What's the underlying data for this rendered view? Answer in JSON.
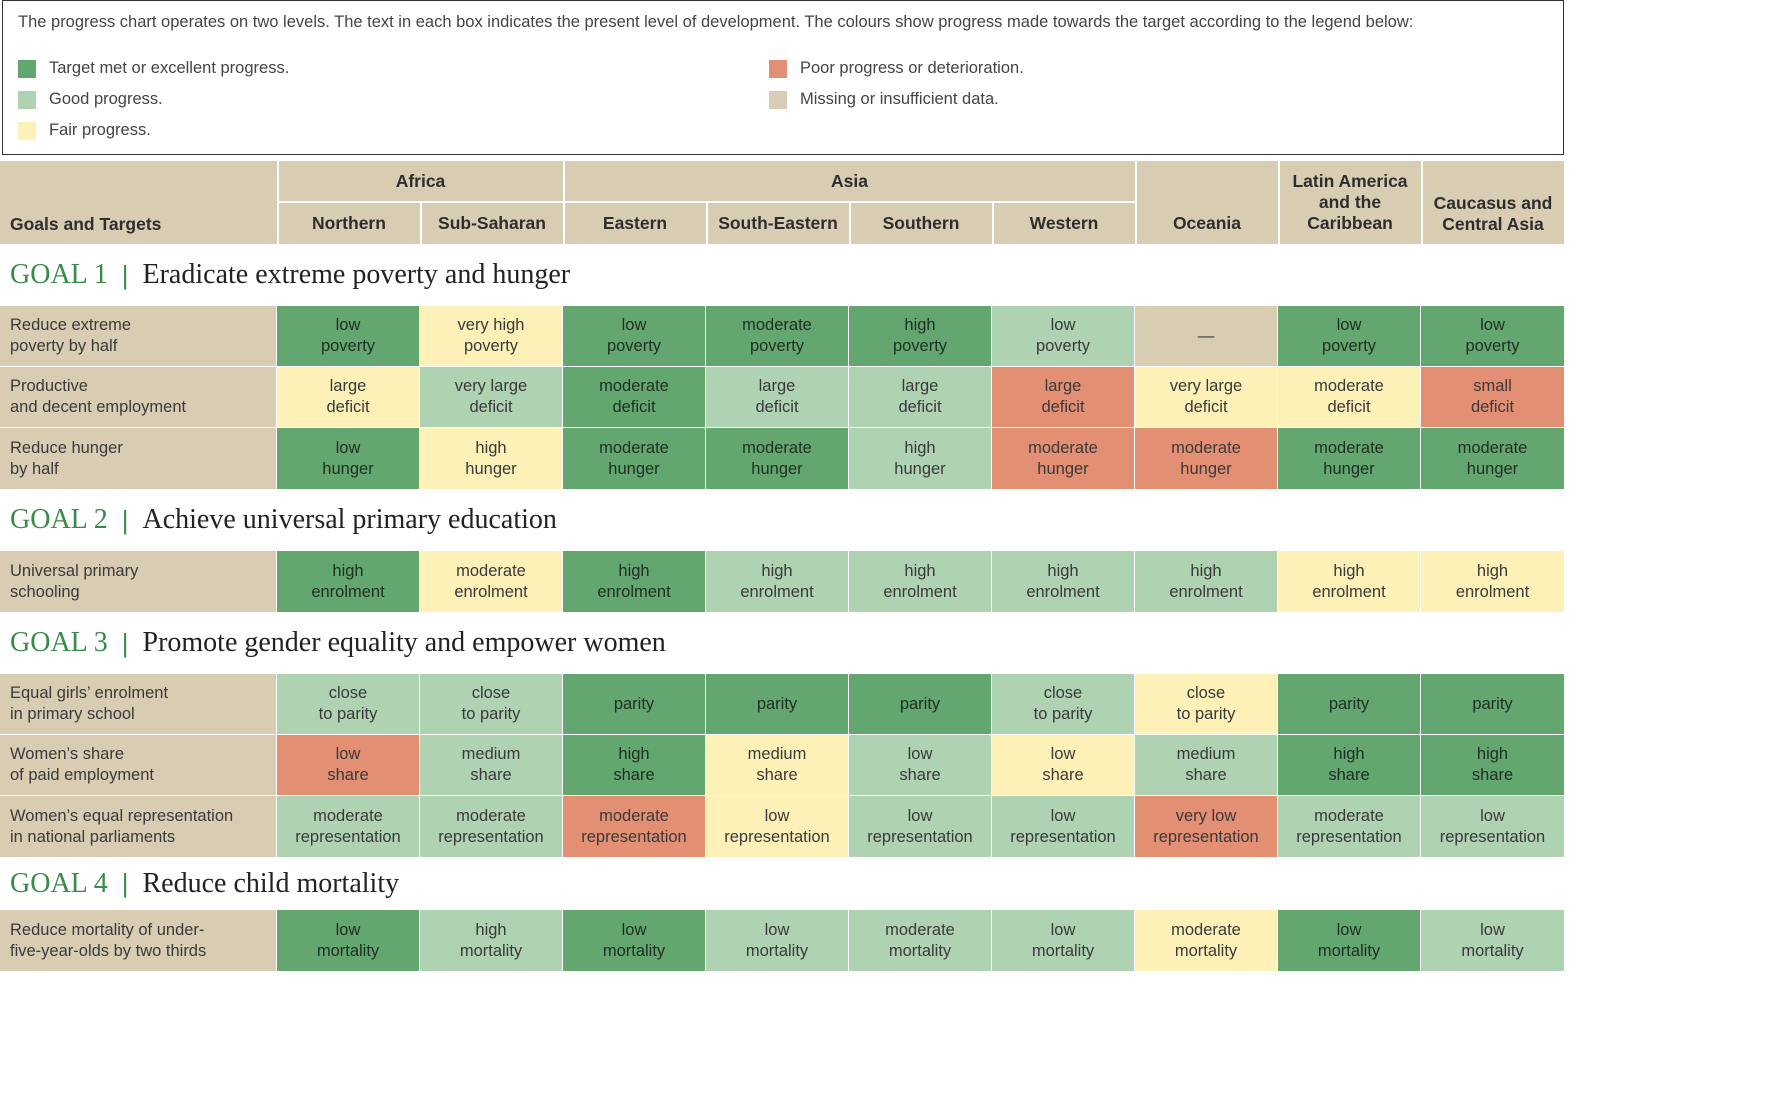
{
  "legend": {
    "intro": "The progress chart operates on two levels. The text in each box indicates the present level of development. The colours show progress made towards the target according to the legend below:",
    "items": [
      {
        "key": "excellent",
        "label": "Target met or excellent progress.",
        "color": "#63a66f"
      },
      {
        "key": "good",
        "label": "Good progress.",
        "color": "#aed2b2"
      },
      {
        "key": "fair",
        "label": "Fair progress.",
        "color": "#fdf1b8"
      },
      {
        "key": "poor",
        "label": "Poor progress or deterioration.",
        "color": "#e38f74"
      },
      {
        "key": "missing",
        "label": "Missing or insufficient data.",
        "color": "#d8cdb3"
      }
    ]
  },
  "header": {
    "goals_targets": "Goals and Targets",
    "groups": [
      "Africa",
      "Asia"
    ],
    "columns": [
      "Northern",
      "Sub-Saharan",
      "Eastern",
      "South-Eastern",
      "Southern",
      "Western",
      "Oceania",
      "Latin America\nand the\nCaribbean",
      "Caucasus and\nCentral Asia"
    ]
  },
  "goals": [
    {
      "number": "GOAL 1",
      "separator": "|",
      "title": "Eradicate extreme poverty and hunger",
      "rows": [
        {
          "label": "Reduce extreme\npoverty by half",
          "cells": [
            [
              "low\npoverty",
              "excellent"
            ],
            [
              "very high\npoverty",
              "fair"
            ],
            [
              "low\npoverty",
              "excellent"
            ],
            [
              "moderate\npoverty",
              "excellent"
            ],
            [
              "high\npoverty",
              "excellent"
            ],
            [
              "low\npoverty",
              "good"
            ],
            [
              "—",
              "missing"
            ],
            [
              "low\npoverty",
              "excellent"
            ],
            [
              "low\npoverty",
              "excellent"
            ]
          ]
        },
        {
          "label": "Productive\nand decent employment",
          "cells": [
            [
              "large\ndeficit",
              "fair"
            ],
            [
              "very large\ndeficit",
              "good"
            ],
            [
              "moderate\ndeficit",
              "excellent"
            ],
            [
              "large\ndeficit",
              "good"
            ],
            [
              "large\ndeficit",
              "good"
            ],
            [
              "large\ndeficit",
              "poor"
            ],
            [
              "very large\ndeficit",
              "fair"
            ],
            [
              "moderate\ndeficit",
              "fair"
            ],
            [
              "small\ndeficit",
              "poor"
            ]
          ]
        },
        {
          "label": "Reduce hunger\nby half",
          "cells": [
            [
              "low\nhunger",
              "excellent"
            ],
            [
              "high\nhunger",
              "fair"
            ],
            [
              "moderate\nhunger",
              "excellent"
            ],
            [
              "moderate\nhunger",
              "excellent"
            ],
            [
              "high\nhunger",
              "good"
            ],
            [
              "moderate\nhunger",
              "poor"
            ],
            [
              "moderate\nhunger",
              "poor"
            ],
            [
              "moderate\nhunger",
              "excellent"
            ],
            [
              "moderate\nhunger",
              "excellent"
            ]
          ]
        }
      ]
    },
    {
      "number": "GOAL 2",
      "separator": "|",
      "title": "Achieve universal primary education",
      "rows": [
        {
          "label": "Universal primary\nschooling",
          "cells": [
            [
              "high\nenrolment",
              "excellent"
            ],
            [
              "moderate\nenrolment",
              "fair"
            ],
            [
              "high\nenrolment",
              "excellent"
            ],
            [
              "high\nenrolment",
              "good"
            ],
            [
              "high\nenrolment",
              "good"
            ],
            [
              "high\nenrolment",
              "good"
            ],
            [
              "high\nenrolment",
              "good"
            ],
            [
              "high\nenrolment",
              "fair"
            ],
            [
              "high\nenrolment",
              "fair"
            ]
          ]
        }
      ]
    },
    {
      "number": "GOAL 3",
      "separator": "|",
      "title": "Promote gender equality and empower women",
      "rows": [
        {
          "label": "Equal girls’ enrolment\nin primary school",
          "cells": [
            [
              "close\nto parity",
              "good"
            ],
            [
              "close\nto parity",
              "good"
            ],
            [
              "parity",
              "excellent"
            ],
            [
              "parity",
              "excellent"
            ],
            [
              "parity",
              "excellent"
            ],
            [
              "close\nto parity",
              "good"
            ],
            [
              "close\nto parity",
              "fair"
            ],
            [
              "parity",
              "excellent"
            ],
            [
              "parity",
              "excellent"
            ]
          ]
        },
        {
          "label": "Women’s share\nof paid employment",
          "cells": [
            [
              "low\nshare",
              "poor"
            ],
            [
              "medium\nshare",
              "good"
            ],
            [
              "high\nshare",
              "excellent"
            ],
            [
              "medium\nshare",
              "fair"
            ],
            [
              "low\nshare",
              "good"
            ],
            [
              "low\nshare",
              "fair"
            ],
            [
              "medium\nshare",
              "good"
            ],
            [
              "high\nshare",
              "excellent"
            ],
            [
              "high\nshare",
              "excellent"
            ]
          ]
        },
        {
          "label": "Women’s equal representation\nin national parliaments",
          "cells": [
            [
              "moderate\nrepresentation",
              "good"
            ],
            [
              "moderate\nrepresentation",
              "good"
            ],
            [
              "moderate\nrepresentation",
              "poor"
            ],
            [
              "low\nrepresentation",
              "fair"
            ],
            [
              "low\nrepresentation",
              "good"
            ],
            [
              "low\nrepresentation",
              "good"
            ],
            [
              "very low\nrepresentation",
              "poor"
            ],
            [
              "moderate\nrepresentation",
              "good"
            ],
            [
              "low\nrepresentation",
              "good"
            ]
          ]
        }
      ]
    },
    {
      "number": "GOAL 4",
      "separator": "|",
      "title": "Reduce child mortality",
      "rows": [
        {
          "label": "Reduce mortality of under-\nfive-year-olds by two thirds",
          "cells": [
            [
              "low\nmortality",
              "excellent"
            ],
            [
              "high\nmortality",
              "good"
            ],
            [
              "low\nmortality",
              "excellent"
            ],
            [
              "low\nmortality",
              "good"
            ],
            [
              "moderate\nmortality",
              "good"
            ],
            [
              "low\nmortality",
              "good"
            ],
            [
              "moderate\nmortality",
              "fair"
            ],
            [
              "low\nmortality",
              "excellent"
            ],
            [
              "low\nmortality",
              "good"
            ]
          ]
        }
      ]
    }
  ]
}
